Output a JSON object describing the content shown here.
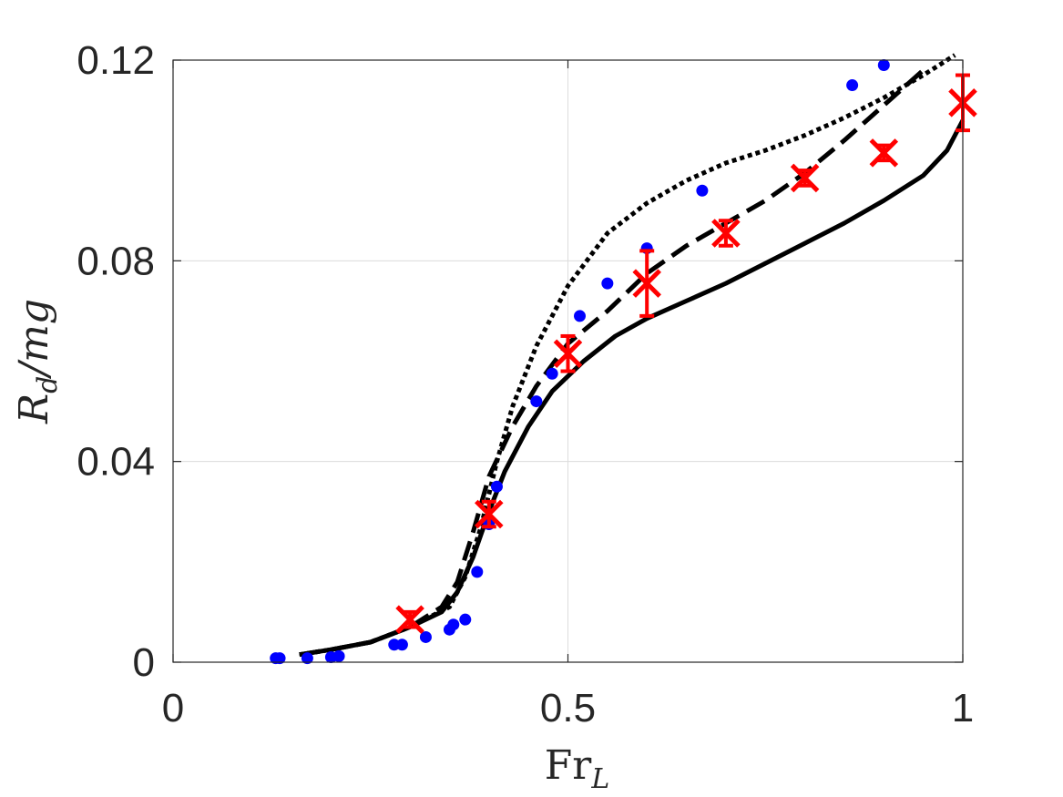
{
  "chart_data": {
    "type": "scatter",
    "title": "",
    "xlabel": {
      "main": "Fr",
      "sub": "L"
    },
    "ylabel": {
      "main": "R",
      "sub": "d",
      "rest": "/mg"
    },
    "xlim": [
      0,
      1
    ],
    "ylim": [
      0,
      0.12
    ],
    "x_ticks": [
      {
        "value": 0,
        "label": "0"
      },
      {
        "value": 0.5,
        "label": "0.5"
      },
      {
        "value": 1,
        "label": "1"
      }
    ],
    "y_ticks": [
      {
        "value": 0,
        "label": "0"
      },
      {
        "value": 0.04,
        "label": "0.04"
      },
      {
        "value": 0.08,
        "label": "0.08"
      },
      {
        "value": 0.12,
        "label": "0.12"
      }
    ],
    "grid": true,
    "legend": "none",
    "series": [
      {
        "style": "solid-line",
        "color": "#000000",
        "points": [
          [
            0.16,
            0.0015
          ],
          [
            0.2,
            0.0025
          ],
          [
            0.25,
            0.004
          ],
          [
            0.3,
            0.007
          ],
          [
            0.34,
            0.01
          ],
          [
            0.36,
            0.014
          ],
          [
            0.38,
            0.021
          ],
          [
            0.4,
            0.03
          ],
          [
            0.42,
            0.038
          ],
          [
            0.45,
            0.047
          ],
          [
            0.48,
            0.054
          ],
          [
            0.52,
            0.06
          ],
          [
            0.56,
            0.065
          ],
          [
            0.6,
            0.0685
          ],
          [
            0.65,
            0.072
          ],
          [
            0.7,
            0.0755
          ],
          [
            0.75,
            0.0795
          ],
          [
            0.8,
            0.0835
          ],
          [
            0.85,
            0.0875
          ],
          [
            0.9,
            0.092
          ],
          [
            0.95,
            0.097
          ],
          [
            0.98,
            0.102
          ],
          [
            1.0,
            0.108
          ]
        ]
      },
      {
        "style": "dashed-line",
        "color": "#000000",
        "points": [
          [
            0.16,
            0.0015
          ],
          [
            0.2,
            0.0025
          ],
          [
            0.25,
            0.004
          ],
          [
            0.3,
            0.007
          ],
          [
            0.34,
            0.011
          ],
          [
            0.36,
            0.016
          ],
          [
            0.38,
            0.026
          ],
          [
            0.4,
            0.037
          ],
          [
            0.43,
            0.047
          ],
          [
            0.46,
            0.055
          ],
          [
            0.5,
            0.0635
          ],
          [
            0.55,
            0.07
          ],
          [
            0.6,
            0.0775
          ],
          [
            0.65,
            0.083
          ],
          [
            0.7,
            0.0875
          ],
          [
            0.75,
            0.092
          ],
          [
            0.8,
            0.0975
          ],
          [
            0.85,
            0.104
          ],
          [
            0.9,
            0.111
          ],
          [
            0.95,
            0.118
          ]
        ]
      },
      {
        "style": "dotted-line",
        "color": "#000000",
        "points": [
          [
            0.16,
            0.0015
          ],
          [
            0.2,
            0.0025
          ],
          [
            0.25,
            0.004
          ],
          [
            0.3,
            0.007
          ],
          [
            0.35,
            0.011
          ],
          [
            0.37,
            0.017
          ],
          [
            0.39,
            0.027
          ],
          [
            0.41,
            0.04
          ],
          [
            0.43,
            0.051
          ],
          [
            0.46,
            0.063
          ],
          [
            0.5,
            0.075
          ],
          [
            0.55,
            0.0855
          ],
          [
            0.6,
            0.0915
          ],
          [
            0.65,
            0.096
          ],
          [
            0.7,
            0.0995
          ],
          [
            0.75,
            0.102
          ],
          [
            0.8,
            0.105
          ],
          [
            0.85,
            0.1085
          ],
          [
            0.9,
            0.1125
          ],
          [
            0.95,
            0.117
          ],
          [
            0.99,
            0.121
          ]
        ]
      },
      {
        "style": "dots",
        "color": "#0000ff",
        "points": [
          [
            0.13,
            0.0008
          ],
          [
            0.135,
            0.0008
          ],
          [
            0.17,
            0.0008
          ],
          [
            0.2,
            0.001
          ],
          [
            0.21,
            0.0012
          ],
          [
            0.28,
            0.0035
          ],
          [
            0.29,
            0.0035
          ],
          [
            0.32,
            0.005
          ],
          [
            0.35,
            0.0065
          ],
          [
            0.355,
            0.0075
          ],
          [
            0.37,
            0.0085
          ],
          [
            0.385,
            0.018
          ],
          [
            0.4,
            0.0275
          ],
          [
            0.41,
            0.035
          ],
          [
            0.46,
            0.052
          ],
          [
            0.48,
            0.0575
          ],
          [
            0.515,
            0.069
          ],
          [
            0.55,
            0.0755
          ],
          [
            0.6,
            0.0825
          ],
          [
            0.67,
            0.094
          ],
          [
            0.86,
            0.115
          ],
          [
            0.9,
            0.119
          ]
        ]
      },
      {
        "style": "x-errorbar",
        "color": "#ff0000",
        "points": [
          {
            "x": 0.3,
            "y": 0.0085,
            "err": 0.0015
          },
          {
            "x": 0.4,
            "y": 0.0295,
            "err": 0.0025
          },
          {
            "x": 0.5,
            "y": 0.0615,
            "err": 0.0035
          },
          {
            "x": 0.6,
            "y": 0.0755,
            "err": 0.0065
          },
          {
            "x": 0.7,
            "y": 0.0855,
            "err": 0.0025
          },
          {
            "x": 0.8,
            "y": 0.0965,
            "err": 0.0015
          },
          {
            "x": 0.9,
            "y": 0.1015,
            "err": 0.0015
          },
          {
            "x": 1.0,
            "y": 0.1115,
            "err": 0.0055
          }
        ]
      }
    ]
  }
}
